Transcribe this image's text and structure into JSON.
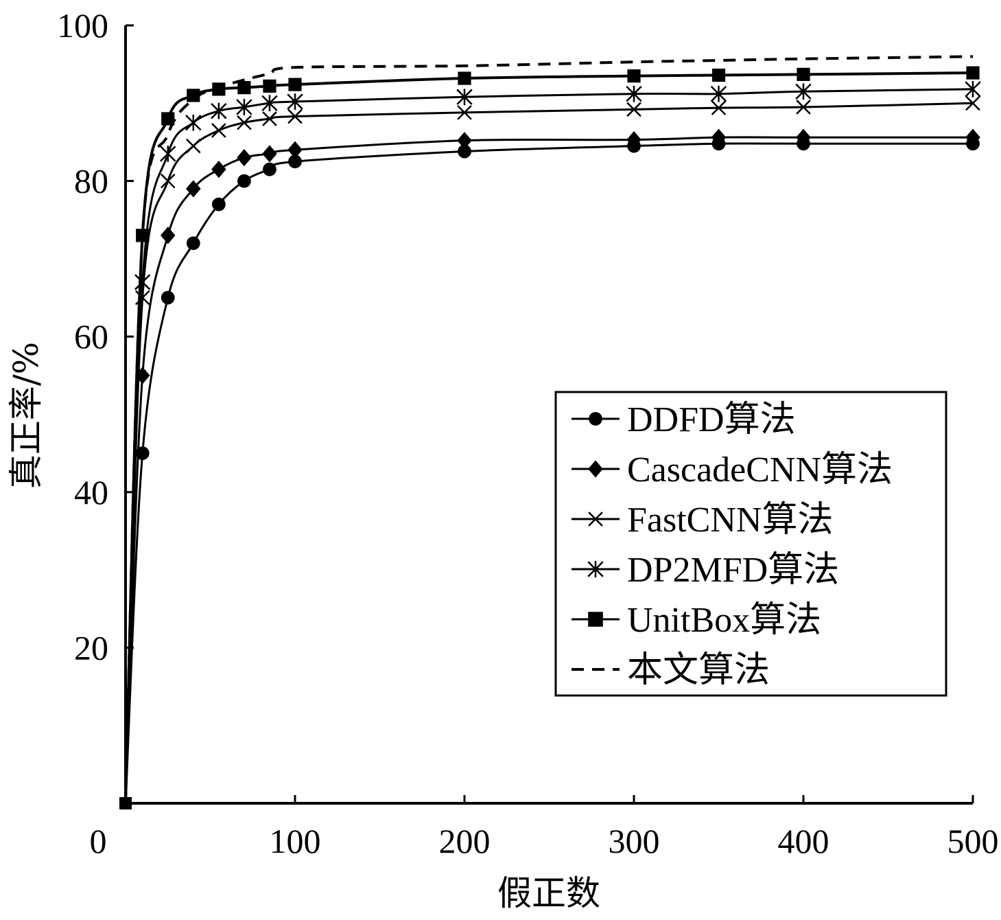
{
  "chart_data": {
    "type": "line",
    "title": "",
    "xlabel": "假正数",
    "ylabel": "真正率/%",
    "xlim": [
      0,
      500
    ],
    "ylim": [
      0,
      100
    ],
    "x_ticks": [
      0,
      100,
      200,
      300,
      400,
      500
    ],
    "y_ticks": [
      20,
      40,
      60,
      80,
      100
    ],
    "grid": false,
    "legend_position": "lower-right",
    "series": [
      {
        "name": "DDFD算法",
        "marker": "circle",
        "dashed": false,
        "points": [
          [
            0,
            0
          ],
          [
            10,
            45
          ],
          [
            25,
            65
          ],
          [
            40,
            72
          ],
          [
            55,
            77
          ],
          [
            70,
            80
          ],
          [
            85,
            81.5
          ],
          [
            100,
            82.5
          ],
          [
            200,
            83.8
          ],
          [
            300,
            84.5
          ],
          [
            350,
            84.8
          ],
          [
            400,
            84.8
          ],
          [
            500,
            84.8
          ]
        ]
      },
      {
        "name": "CascadeCNN算法",
        "marker": "diamond",
        "dashed": false,
        "points": [
          [
            0,
            0
          ],
          [
            10,
            55
          ],
          [
            25,
            73
          ],
          [
            40,
            79
          ],
          [
            55,
            81.5
          ],
          [
            70,
            83
          ],
          [
            85,
            83.5
          ],
          [
            100,
            84
          ],
          [
            200,
            85.2
          ],
          [
            300,
            85.3
          ],
          [
            350,
            85.6
          ],
          [
            400,
            85.6
          ],
          [
            500,
            85.6
          ]
        ]
      },
      {
        "name": "FastCNN算法",
        "marker": "x",
        "dashed": false,
        "points": [
          [
            0,
            0
          ],
          [
            10,
            65
          ],
          [
            25,
            80
          ],
          [
            40,
            84.5
          ],
          [
            55,
            86.5
          ],
          [
            70,
            87.5
          ],
          [
            85,
            88
          ],
          [
            100,
            88.3
          ],
          [
            200,
            88.8
          ],
          [
            300,
            89.2
          ],
          [
            350,
            89.4
          ],
          [
            400,
            89.5
          ],
          [
            500,
            90
          ]
        ]
      },
      {
        "name": "DP2MFD算法",
        "marker": "asterisk",
        "dashed": false,
        "points": [
          [
            0,
            0
          ],
          [
            10,
            67
          ],
          [
            25,
            83.5
          ],
          [
            40,
            87.5
          ],
          [
            55,
            89
          ],
          [
            70,
            89.5
          ],
          [
            85,
            90
          ],
          [
            100,
            90.2
          ],
          [
            200,
            90.8
          ],
          [
            300,
            91.2
          ],
          [
            350,
            91.2
          ],
          [
            400,
            91.5
          ],
          [
            500,
            91.8
          ]
        ]
      },
      {
        "name": "UnitBox算法",
        "marker": "square",
        "dashed": false,
        "points": [
          [
            0,
            0
          ],
          [
            10,
            73
          ],
          [
            25,
            88
          ],
          [
            40,
            91
          ],
          [
            55,
            91.8
          ],
          [
            70,
            92
          ],
          [
            85,
            92.2
          ],
          [
            100,
            92.4
          ],
          [
            200,
            93.2
          ],
          [
            300,
            93.5
          ],
          [
            350,
            93.6
          ],
          [
            400,
            93.7
          ],
          [
            500,
            93.9
          ]
        ]
      },
      {
        "name": "本文算法",
        "marker": "none",
        "dashed": true,
        "points": [
          [
            0,
            0
          ],
          [
            10,
            73
          ],
          [
            25,
            86
          ],
          [
            40,
            90.5
          ],
          [
            55,
            92
          ],
          [
            70,
            93
          ],
          [
            85,
            93.8
          ],
          [
            100,
            94.6
          ],
          [
            200,
            94.8
          ],
          [
            300,
            95.3
          ],
          [
            350,
            95.5
          ],
          [
            400,
            95.7
          ],
          [
            500,
            96
          ]
        ]
      }
    ]
  }
}
